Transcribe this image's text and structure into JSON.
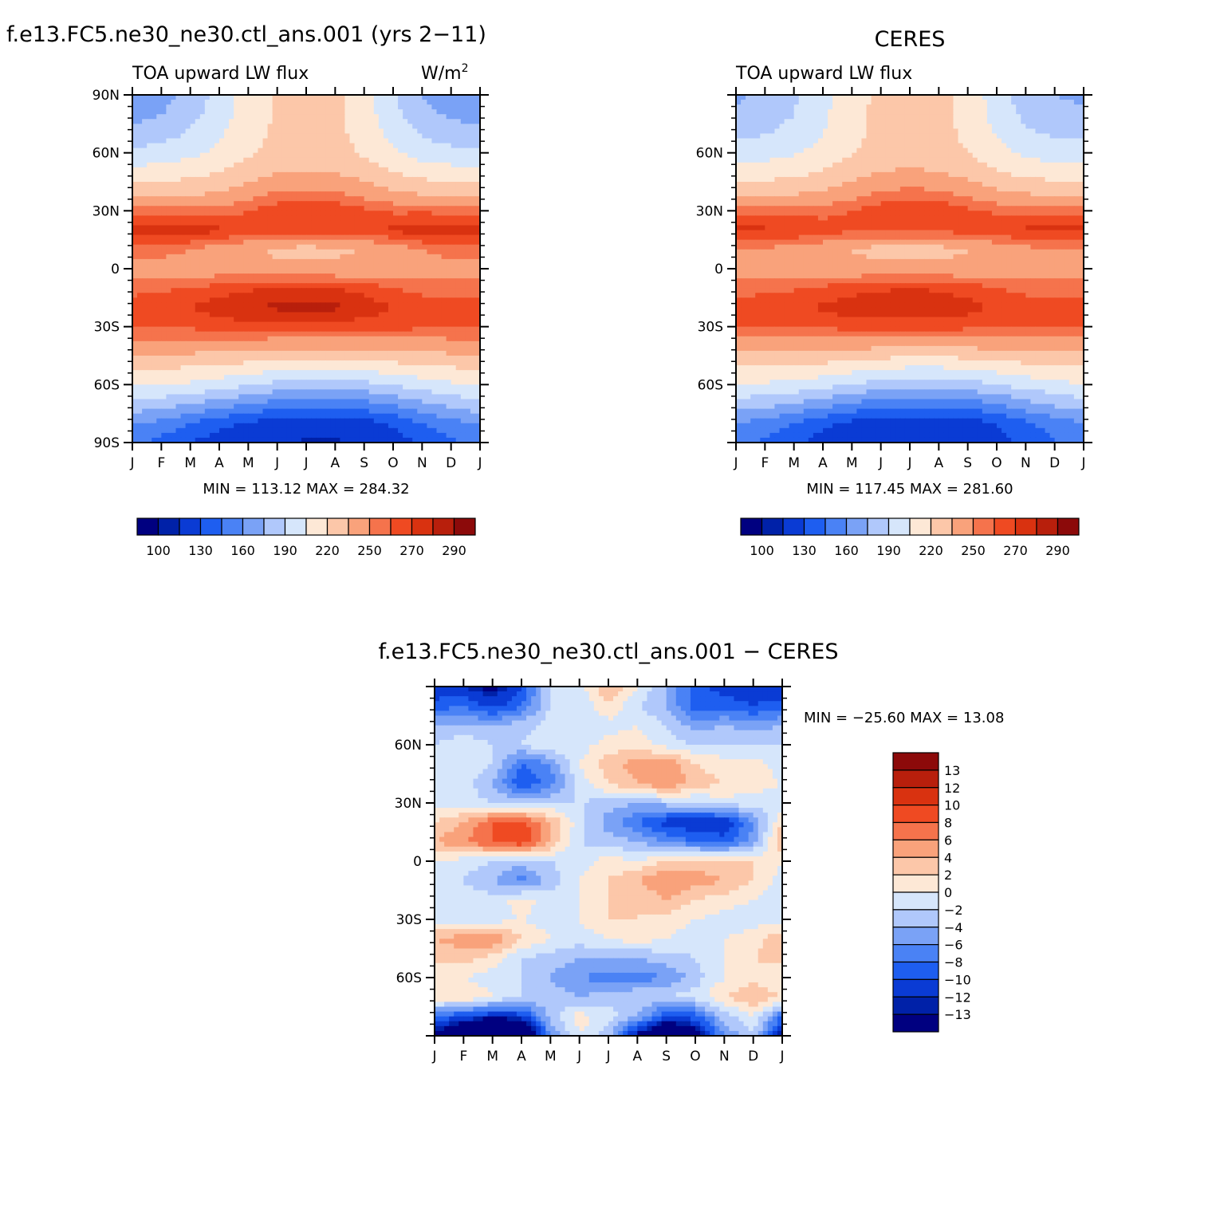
{
  "palette": [
    "#000080",
    "#0021a8",
    "#0a3bd4",
    "#1e5ef0",
    "#4a82f5",
    "#7aa2f6",
    "#b0c8fb",
    "#d6e6fb",
    "#fde8d6",
    "#fcc7a9",
    "#f9a27b",
    "#f5734c",
    "#ef4a22",
    "#d93210",
    "#b81f0c",
    "#8c0a0a"
  ],
  "months": [
    "J",
    "F",
    "M",
    "A",
    "M",
    "J",
    "J",
    "A",
    "S",
    "O",
    "N",
    "D",
    "J"
  ],
  "panels": [
    {
      "title": "f.e13.FC5.ne30_ne30.ctl_ans.001 (yrs 2−11)",
      "left_label": "TOA upward LW flux",
      "right_label": "W/m",
      "right_label_sup": "2",
      "lat_labels": [
        "90N",
        "60N",
        "30N",
        "0",
        "30S",
        "60S",
        "90S"
      ],
      "stats": "MIN = 113.12 MAX = 284.32",
      "colorbar_labels": [
        "100",
        "130",
        "160",
        "190",
        "220",
        "250",
        "270",
        "290"
      ]
    },
    {
      "title": "CERES",
      "left_label": "TOA upward LW flux",
      "lat_labels": [
        "",
        "60N",
        "30N",
        "0",
        "30S",
        "60S",
        ""
      ],
      "stats": "MIN = 117.45 MAX = 281.60",
      "colorbar_labels": [
        "100",
        "130",
        "160",
        "190",
        "220",
        "250",
        "270",
        "290"
      ]
    },
    {
      "title": "f.e13.FC5.ne30_ne30.ctl_ans.001 − CERES",
      "lat_labels": [
        "",
        "60N",
        "30N",
        "0",
        "30S",
        "60S",
        ""
      ],
      "stats": "MIN = −25.60 MAX =   13.08",
      "colorbar_labels": [
        "13",
        "12",
        "10",
        "8",
        "6",
        "4",
        "2",
        "0",
        "−2",
        "−4",
        "−6",
        "−8",
        "−10",
        "−12",
        "−13"
      ]
    }
  ],
  "chart_data": [
    {
      "type": "heatmap",
      "title": "f.e13.FC5.ne30_ne30.ctl_ans.001 (yrs 2−11)",
      "ylabel": "",
      "xlabel": "",
      "variable": "TOA upward LW flux",
      "units": "W/m2",
      "x_categories": [
        "J",
        "F",
        "M",
        "A",
        "M",
        "J",
        "J",
        "A",
        "S",
        "O",
        "N",
        "D",
        "J"
      ],
      "latitudes": [
        90,
        80,
        70,
        60,
        50,
        40,
        30,
        20,
        10,
        0,
        -10,
        -20,
        -30,
        -40,
        -50,
        -60,
        -70,
        -80,
        -90
      ],
      "values": [
        [
          160,
          168,
          180,
          195,
          212,
          222,
          226,
          224,
          210,
          192,
          175,
          165,
          160
        ],
        [
          170,
          175,
          185,
          198,
          213,
          222,
          226,
          224,
          212,
          195,
          180,
          172,
          170
        ],
        [
          180,
          184,
          192,
          203,
          215,
          222,
          226,
          224,
          214,
          200,
          188,
          182,
          180
        ],
        [
          193,
          196,
          201,
          208,
          218,
          225,
          228,
          226,
          218,
          207,
          198,
          195,
          193
        ],
        [
          210,
          212,
          215,
          220,
          228,
          234,
          236,
          234,
          228,
          220,
          214,
          211,
          210
        ],
        [
          228,
          229,
          230,
          234,
          242,
          250,
          252,
          250,
          243,
          236,
          231,
          229,
          228
        ],
        [
          256,
          255,
          254,
          255,
          260,
          266,
          270,
          268,
          262,
          258,
          258,
          257,
          256
        ],
        [
          274,
          276,
          276,
          272,
          266,
          264,
          266,
          266,
          268,
          272,
          276,
          276,
          274
        ],
        [
          258,
          255,
          250,
          244,
          238,
          232,
          230,
          232,
          236,
          242,
          250,
          256,
          258
        ],
        [
          244,
          243,
          242,
          242,
          240,
          239,
          238,
          238,
          240,
          242,
          244,
          244,
          244
        ],
        [
          256,
          258,
          260,
          264,
          268,
          270,
          272,
          270,
          266,
          260,
          256,
          255,
          256
        ],
        [
          266,
          268,
          270,
          276,
          280,
          282,
          284,
          282,
          276,
          270,
          266,
          265,
          266
        ],
        [
          262,
          262,
          262,
          264,
          266,
          266,
          266,
          266,
          265,
          264,
          262,
          262,
          262
        ],
        [
          244,
          244,
          243,
          242,
          241,
          240,
          240,
          240,
          240,
          241,
          242,
          243,
          244
        ],
        [
          224,
          223,
          222,
          220,
          216,
          212,
          210,
          210,
          212,
          216,
          220,
          222,
          224
        ],
        [
          206,
          205,
          203,
          198,
          192,
          186,
          184,
          184,
          186,
          192,
          198,
          203,
          206
        ],
        [
          186,
          182,
          176,
          168,
          160,
          154,
          152,
          152,
          155,
          162,
          172,
          180,
          186
        ],
        [
          162,
          155,
          145,
          135,
          128,
          122,
          120,
          120,
          124,
          132,
          145,
          155,
          162
        ],
        [
          150,
          140,
          130,
          122,
          118,
          116,
          114,
          114,
          116,
          122,
          132,
          142,
          150
        ]
      ],
      "levels": [
        100,
        115,
        130,
        145,
        160,
        175,
        190,
        205,
        220,
        235,
        250,
        260,
        270,
        280,
        290
      ],
      "stats": {
        "min": 113.12,
        "max": 284.32
      }
    },
    {
      "type": "heatmap",
      "title": "CERES",
      "ylabel": "",
      "xlabel": "",
      "variable": "TOA upward LW flux",
      "x_categories": [
        "J",
        "F",
        "M",
        "A",
        "M",
        "J",
        "J",
        "A",
        "S",
        "O",
        "N",
        "D",
        "J"
      ],
      "latitudes": [
        90,
        80,
        70,
        60,
        50,
        40,
        30,
        20,
        10,
        0,
        -10,
        -20,
        -30,
        -40,
        -50,
        -60,
        -70,
        -80,
        -90
      ],
      "values": [
        [
          172,
          178,
          188,
          200,
          214,
          224,
          228,
          226,
          214,
          198,
          182,
          175,
          172
        ],
        [
          178,
          182,
          190,
          202,
          215,
          224,
          228,
          226,
          215,
          200,
          186,
          180,
          178
        ],
        [
          186,
          189,
          195,
          205,
          216,
          224,
          228,
          226,
          216,
          204,
          192,
          188,
          186
        ],
        [
          197,
          199,
          203,
          210,
          219,
          226,
          229,
          227,
          220,
          210,
          202,
          198,
          197
        ],
        [
          212,
          213,
          216,
          221,
          229,
          235,
          237,
          235,
          229,
          221,
          215,
          213,
          212
        ],
        [
          230,
          230,
          231,
          235,
          243,
          250,
          253,
          251,
          244,
          237,
          232,
          230,
          230
        ],
        [
          258,
          257,
          256,
          256,
          260,
          266,
          270,
          268,
          262,
          258,
          258,
          258,
          258
        ],
        [
          272,
          272,
          270,
          266,
          262,
          262,
          264,
          264,
          264,
          268,
          272,
          272,
          272
        ],
        [
          250,
          248,
          245,
          240,
          234,
          230,
          228,
          230,
          234,
          240,
          246,
          250,
          250
        ],
        [
          240,
          240,
          240,
          240,
          240,
          240,
          240,
          240,
          240,
          240,
          240,
          240,
          240
        ],
        [
          256,
          257,
          259,
          262,
          266,
          268,
          270,
          268,
          265,
          260,
          257,
          256,
          256
        ],
        [
          264,
          266,
          268,
          272,
          276,
          278,
          280,
          278,
          274,
          268,
          265,
          264,
          264
        ],
        [
          260,
          260,
          260,
          262,
          264,
          264,
          264,
          264,
          263,
          262,
          260,
          260,
          260
        ],
        [
          242,
          242,
          241,
          240,
          239,
          238,
          238,
          238,
          238,
          239,
          240,
          241,
          242
        ],
        [
          222,
          221,
          220,
          218,
          214,
          210,
          208,
          208,
          210,
          214,
          218,
          221,
          222
        ],
        [
          204,
          203,
          201,
          196,
          190,
          184,
          182,
          182,
          184,
          190,
          196,
          201,
          204
        ],
        [
          184,
          180,
          174,
          166,
          158,
          152,
          150,
          150,
          153,
          160,
          170,
          178,
          184
        ],
        [
          160,
          154,
          144,
          134,
          126,
          120,
          118,
          118,
          122,
          130,
          142,
          152,
          160
        ],
        [
          150,
          142,
          132,
          124,
          120,
          118,
          117,
          117,
          118,
          124,
          134,
          144,
          150
        ]
      ],
      "levels": [
        100,
        115,
        130,
        145,
        160,
        175,
        190,
        205,
        220,
        235,
        250,
        260,
        270,
        280,
        290
      ],
      "stats": {
        "min": 117.45,
        "max": 281.6
      }
    },
    {
      "type": "heatmap",
      "title": "f.e13.FC5.ne30_ne30.ctl_ans.001 − CERES",
      "ylabel": "",
      "xlabel": "",
      "x_categories": [
        "J",
        "F",
        "M",
        "A",
        "M",
        "J",
        "J",
        "A",
        "S",
        "O",
        "N",
        "D",
        "J"
      ],
      "latitudes": [
        90,
        80,
        70,
        60,
        50,
        40,
        30,
        20,
        10,
        0,
        -10,
        -20,
        -30,
        -40,
        -50,
        -60,
        -70,
        -80,
        -90
      ],
      "values": [
        [
          -12,
          -12,
          -14,
          -10,
          -2,
          -1,
          4,
          0,
          -4,
          -9,
          -11,
          -11,
          -12
        ],
        [
          -9,
          -8,
          -11,
          -8,
          -2,
          -2,
          2,
          -2,
          -4,
          -9,
          -9,
          -10,
          -9
        ],
        [
          -4,
          -4,
          -4,
          -3,
          -1,
          -2,
          -1,
          0,
          -2,
          -5,
          -4,
          -5,
          -4
        ],
        [
          -2,
          0,
          -2,
          -2,
          0,
          -1,
          1,
          1,
          -1,
          -2,
          -2,
          -2,
          -2
        ],
        [
          -1,
          0,
          -2,
          -8,
          -6,
          0,
          3,
          5,
          6,
          2,
          1,
          1,
          -1
        ],
        [
          0,
          -1,
          -4,
          -10,
          -7,
          -1,
          2,
          4,
          6,
          3,
          2,
          1,
          0
        ],
        [
          -1,
          -1,
          -2,
          -3,
          -2,
          -2,
          -3,
          -4,
          -3,
          -2,
          -1,
          -1,
          -1
        ],
        [
          2,
          4,
          8,
          9,
          4,
          -1,
          -5,
          -8,
          -11,
          -12,
          -12,
          -6,
          2
        ],
        [
          4,
          6,
          8,
          10,
          4,
          -2,
          -3,
          -4,
          -6,
          -8,
          -9,
          -5,
          4
        ],
        [
          0,
          -1,
          -2,
          -3,
          -2,
          -1,
          1,
          0,
          2,
          3,
          3,
          2,
          0
        ],
        [
          -1,
          -2,
          -4,
          -7,
          -3,
          0,
          2,
          4,
          6,
          5,
          4,
          2,
          -1
        ],
        [
          -2,
          -1,
          -1,
          1,
          -1,
          0,
          2,
          2,
          4,
          2,
          1,
          0,
          -2
        ],
        [
          -1,
          -1,
          -1,
          0,
          -1,
          0,
          2,
          2,
          1,
          0,
          -1,
          -1,
          -1
        ],
        [
          4,
          5,
          6,
          2,
          0,
          -1,
          0,
          1,
          0,
          -1,
          0,
          1,
          4
        ],
        [
          3,
          3,
          1,
          -2,
          -3,
          -4,
          -4,
          -4,
          -3,
          -2,
          0,
          2,
          3
        ],
        [
          0,
          0,
          -1,
          -2,
          -4,
          -6,
          -7,
          -7,
          -6,
          -3,
          0,
          1,
          0
        ],
        [
          2,
          2,
          0,
          -2,
          -3,
          -4,
          -3,
          -2,
          -2,
          -1,
          2,
          4,
          2
        ],
        [
          -8,
          -10,
          -12,
          -11,
          -3,
          1,
          -1,
          -4,
          -10,
          -9,
          -3,
          0,
          -8
        ],
        [
          -14,
          -20,
          -25,
          -22,
          -6,
          0,
          -3,
          -14,
          -20,
          -16,
          -6,
          -2,
          -14
        ]
      ],
      "levels": [
        -13,
        -12,
        -10,
        -8,
        -6,
        -4,
        -2,
        0,
        2,
        4,
        6,
        8,
        10,
        12,
        13
      ],
      "stats": {
        "min": -25.6,
        "max": 13.08
      }
    }
  ]
}
